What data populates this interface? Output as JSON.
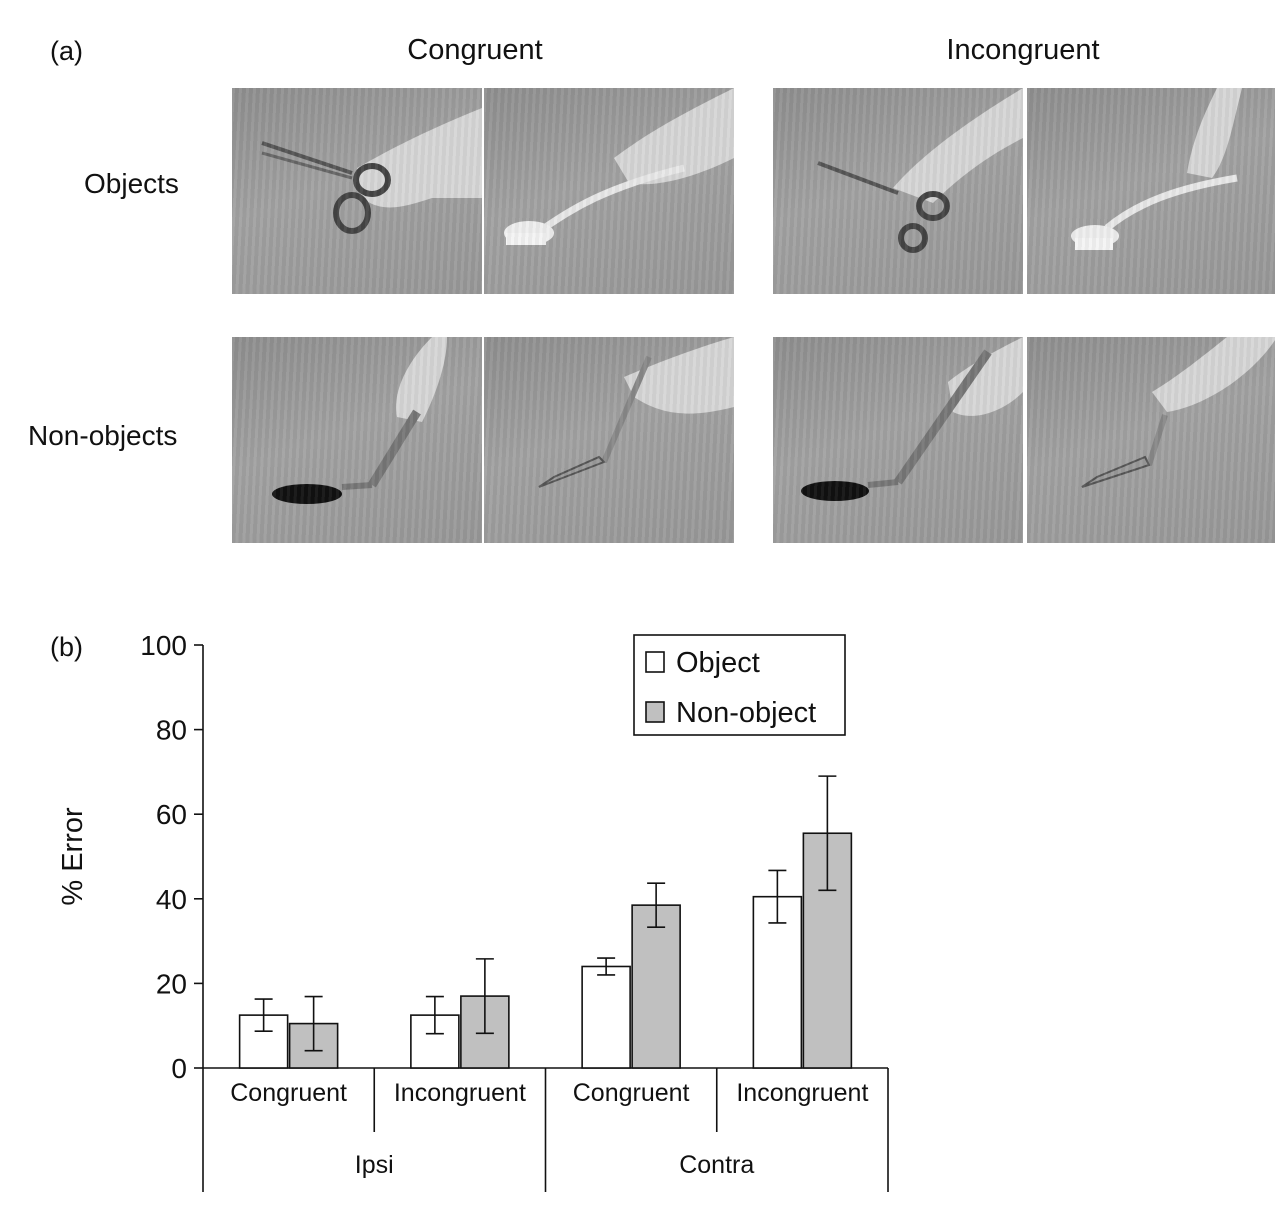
{
  "panel_a": {
    "label": "(a)",
    "col_headers": [
      "Congruent",
      "Incongruent"
    ],
    "row_headers": [
      "Objects",
      "Non-objects"
    ],
    "photos": [
      {
        "row": "Objects",
        "col": "Congruent",
        "item": "scissors-icon"
      },
      {
        "row": "Objects",
        "col": "Congruent",
        "item": "brush-icon"
      },
      {
        "row": "Objects",
        "col": "Incongruent",
        "item": "scissors-icon"
      },
      {
        "row": "Objects",
        "col": "Incongruent",
        "item": "brush-icon"
      },
      {
        "row": "Non-objects",
        "col": "Congruent",
        "item": "nonobject-handle-icon"
      },
      {
        "row": "Non-objects",
        "col": "Congruent",
        "item": "nonobject-blade-icon"
      },
      {
        "row": "Non-objects",
        "col": "Incongruent",
        "item": "nonobject-handle-icon"
      },
      {
        "row": "Non-objects",
        "col": "Incongruent",
        "item": "nonobject-blade-icon"
      }
    ]
  },
  "panel_b": {
    "label": "(b)"
  },
  "chart_data": {
    "type": "bar",
    "title": "",
    "ylabel": "% Error",
    "ylim": [
      0,
      100
    ],
    "yticks": [
      0,
      20,
      40,
      60,
      80,
      100
    ],
    "categories": [
      "Congruent",
      "Incongruent",
      "Congruent",
      "Incongruent"
    ],
    "groups": [
      {
        "label": "Ipsi",
        "categories": [
          0,
          1
        ]
      },
      {
        "label": "Contra",
        "categories": [
          2,
          3
        ]
      }
    ],
    "series": [
      {
        "name": "Object",
        "color": "#ffffff",
        "values": [
          12.5,
          12.5,
          24,
          40.5
        ],
        "errors": [
          3.8,
          4.4,
          2.0,
          6.2
        ]
      },
      {
        "name": "Non-object",
        "color": "#c0c0c0",
        "values": [
          10.5,
          17,
          38.5,
          55.5
        ],
        "errors": [
          6.4,
          8.8,
          5.2,
          13.5
        ]
      }
    ],
    "legend_position": "top-right",
    "grid": false
  }
}
